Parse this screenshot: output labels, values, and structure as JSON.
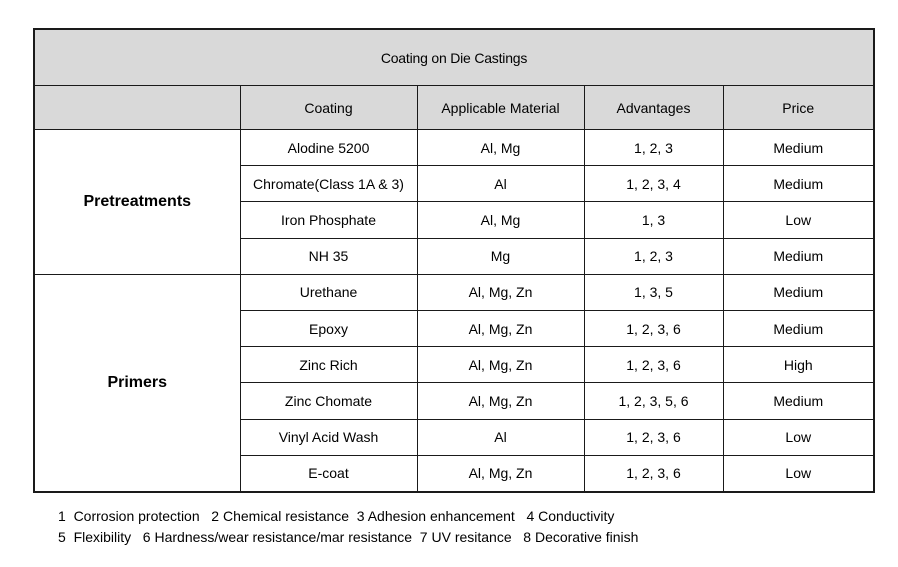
{
  "title": "Coating on Die Castings",
  "columns": [
    "",
    "Coating",
    "Applicable  Material",
    "Advantages",
    "Price"
  ],
  "groups": [
    {
      "name": "Pretreatments",
      "rows": [
        {
          "coating": "Alodine 5200",
          "material": "Al, Mg",
          "advantages": "1, 2, 3",
          "price": "Medium"
        },
        {
          "coating": "Chromate(Class 1A & 3)",
          "material": "Al",
          "advantages": "1, 2, 3, 4",
          "price": "Medium"
        },
        {
          "coating": "Iron Phosphate",
          "material": "Al, Mg",
          "advantages": "1, 3",
          "price": "Low"
        },
        {
          "coating": "NH 35",
          "material": "Mg",
          "advantages": "1, 2, 3",
          "price": "Medium"
        }
      ]
    },
    {
      "name": "Primers",
      "rows": [
        {
          "coating": "Urethane",
          "material": "Al, Mg, Zn",
          "advantages": "1, 3, 5",
          "price": "Medium"
        },
        {
          "coating": "Epoxy",
          "material": "Al, Mg, Zn",
          "advantages": "1, 2, 3, 6",
          "price": "Medium"
        },
        {
          "coating": "Zinc Rich",
          "material": "Al, Mg, Zn",
          "advantages": "1, 2, 3, 6",
          "price": "High"
        },
        {
          "coating": "Zinc Chomate",
          "material": "Al, Mg, Zn",
          "advantages": "1, 2, 3, 5, 6",
          "price": "Medium"
        },
        {
          "coating": "Vinyl Acid Wash",
          "material": "Al",
          "advantages": "1, 2, 3, 6",
          "price": "Low"
        },
        {
          "coating": "E-coat",
          "material": "Al, Mg, Zn",
          "advantages": "1, 2, 3, 6",
          "price": "Low"
        }
      ]
    }
  ],
  "legend": {
    "line1": "1  Corrosion protection   2 Chemical resistance  3 Adhesion enhancement   4 Conductivity",
    "line2": "5  Flexibility   6 Hardness/wear resistance/mar resistance  7 UV resitance   8 Decorative finish"
  },
  "colors": {
    "header_bg": "#d9d9d9",
    "border": "#1a1a1a"
  }
}
